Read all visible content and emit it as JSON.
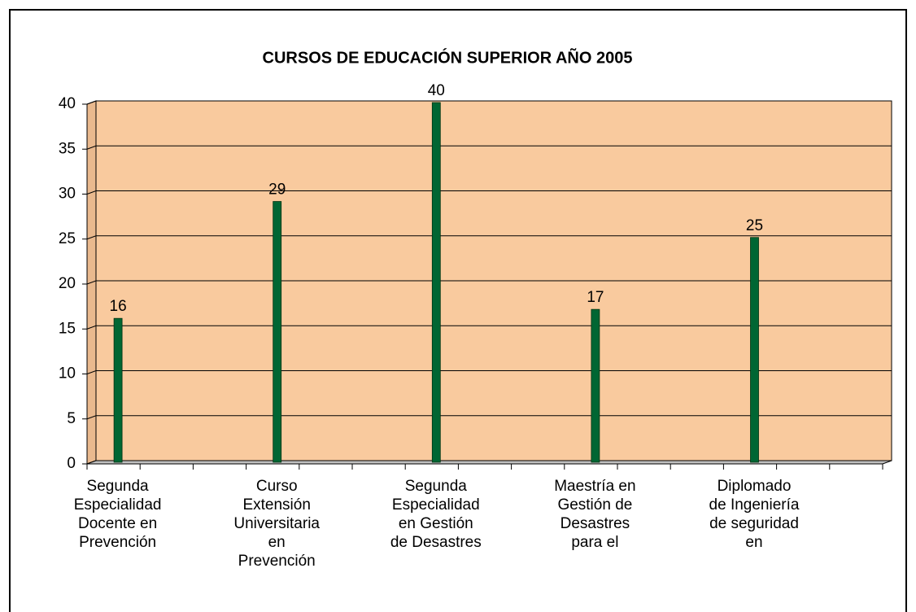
{
  "chart_data": {
    "type": "bar",
    "title": "CURSOS DE EDUCACIÓN SUPERIOR AÑO 2005",
    "categories": [
      "Segunda\nEspecialidad\nDocente en\nPrevención",
      null,
      null,
      "Curso\nExtensión\nUniversitaria\nen\nPrevención",
      null,
      null,
      "Segunda\nEspecialidad\nen Gestión\nde Desastres",
      null,
      null,
      "Maestría en\nGestión de\nDesastres\npara el",
      null,
      null,
      "Diplomado\nde Ingeniería\nde seguridad\nen",
      null,
      null
    ],
    "values": [
      16,
      null,
      null,
      29,
      null,
      null,
      40,
      null,
      null,
      17,
      null,
      null,
      25,
      null,
      null
    ],
    "color": "#006633",
    "ylim": [
      0,
      40
    ],
    "yticks": [
      0,
      5,
      10,
      15,
      20,
      25,
      30,
      35,
      40
    ],
    "grid": true
  }
}
